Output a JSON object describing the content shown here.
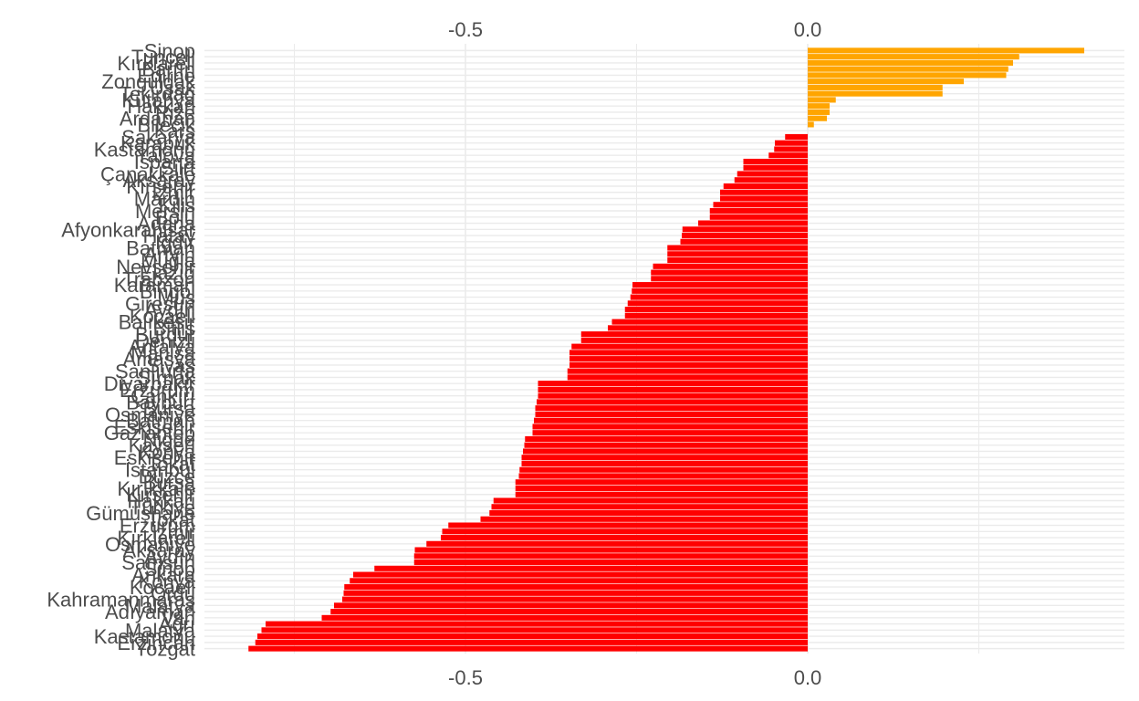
{
  "chart_data": {
    "type": "bar",
    "orientation": "horizontal",
    "title": "",
    "xlabel": "",
    "ylabel": "",
    "xlim": [
      -0.82,
      0.46
    ],
    "x_ticks": [
      -0.5,
      0.0
    ],
    "x_tick_labels": [
      "-0.5",
      "0.0"
    ],
    "x_axis_labels_position": "top-and-bottom",
    "grid": true,
    "legend": "none",
    "colors": {
      "positive": "#FFA500",
      "negative": "#FF0000",
      "grid": "#EBEBEB",
      "text": "#4D4D4D"
    },
    "categories": [
      "Sinop",
      "Tunceli",
      "Kırklareli",
      "Bartın",
      "Edirne",
      "Zonguldak",
      "Uşak",
      "Tekirdağ",
      "Kütahya",
      "Hakkari",
      "Rize",
      "Ardahan",
      "Bilecik",
      "Kars",
      "Sakarya",
      "Karabük",
      "Kastamonu",
      "Yalova",
      "Isparta",
      "Siirt",
      "Çanakkale",
      "Aksaray",
      "Kırşehir",
      "İzmir",
      "Mardin",
      "Kilis",
      "Mersin",
      "Bolu",
      "Adana",
      "Afyonkarahisar",
      "Hatay",
      "Iğdır",
      "Batman",
      "Artvin",
      "Muğla",
      "Nevşehir",
      "Elazığ",
      "Trabzon",
      "Karaman",
      "Bingöl",
      "Muş",
      "Giresun",
      "Aydın",
      "Kocaeli",
      "Balıkesir",
      "Bitlis",
      "Burdur",
      "Denizli",
      "Antalya",
      "Manisa",
      "Amasya",
      "Sivas",
      "Şanlıurfa",
      "Şırnak",
      "Diyarbakır",
      "Erzurum",
      "Çankırı",
      "Bayburt",
      "Bursa",
      "Osmaniye",
      "Batman",
      "Eskişehir",
      "Gaziantep",
      "Niğde",
      "Kayseri",
      "Konya",
      "Eskişehir",
      "Tokat",
      "İstanbul",
      "Düzce",
      "Bursa",
      "Kırıkkale",
      "Kırşehir",
      "Hakkari",
      "Türkiye",
      "Gümüşhane",
      "Tokat",
      "Erzurum",
      "İzmir",
      "Kırklareli",
      "Osmaniye",
      "Aksaray",
      "Aydın",
      "Samsun",
      "Sinop",
      "Ankara",
      "Konya",
      "Kocaeli",
      "Ordu",
      "Kahramanmaraş",
      "Malatya",
      "Adıyaman",
      "Van",
      "Ağrı",
      "Malatya",
      "Kastamonu",
      "Erzincan",
      "Yozgat"
    ],
    "values": [
      0.404,
      0.309,
      0.3,
      0.293,
      0.29,
      0.228,
      0.197,
      0.197,
      0.041,
      0.032,
      0.032,
      0.028,
      0.009,
      0.0,
      -0.033,
      -0.048,
      -0.049,
      -0.057,
      -0.094,
      -0.094,
      -0.103,
      -0.107,
      -0.123,
      -0.128,
      -0.128,
      -0.138,
      -0.143,
      -0.143,
      -0.16,
      -0.183,
      -0.184,
      -0.186,
      -0.205,
      -0.205,
      -0.205,
      -0.226,
      -0.229,
      -0.229,
      -0.256,
      -0.257,
      -0.259,
      -0.263,
      -0.267,
      -0.267,
      -0.286,
      -0.292,
      -0.331,
      -0.331,
      -0.345,
      -0.348,
      -0.348,
      -0.348,
      -0.351,
      -0.351,
      -0.394,
      -0.394,
      -0.394,
      -0.396,
      -0.398,
      -0.398,
      -0.4,
      -0.402,
      -0.402,
      -0.413,
      -0.414,
      -0.416,
      -0.418,
      -0.418,
      -0.421,
      -0.422,
      -0.427,
      -0.427,
      -0.427,
      -0.459,
      -0.462,
      -0.465,
      -0.478,
      -0.525,
      -0.534,
      -0.536,
      -0.557,
      -0.574,
      -0.575,
      -0.575,
      -0.633,
      -0.664,
      -0.669,
      -0.677,
      -0.678,
      -0.68,
      -0.692,
      -0.697,
      -0.71,
      -0.792,
      -0.798,
      -0.804,
      -0.807,
      -0.817
    ]
  }
}
